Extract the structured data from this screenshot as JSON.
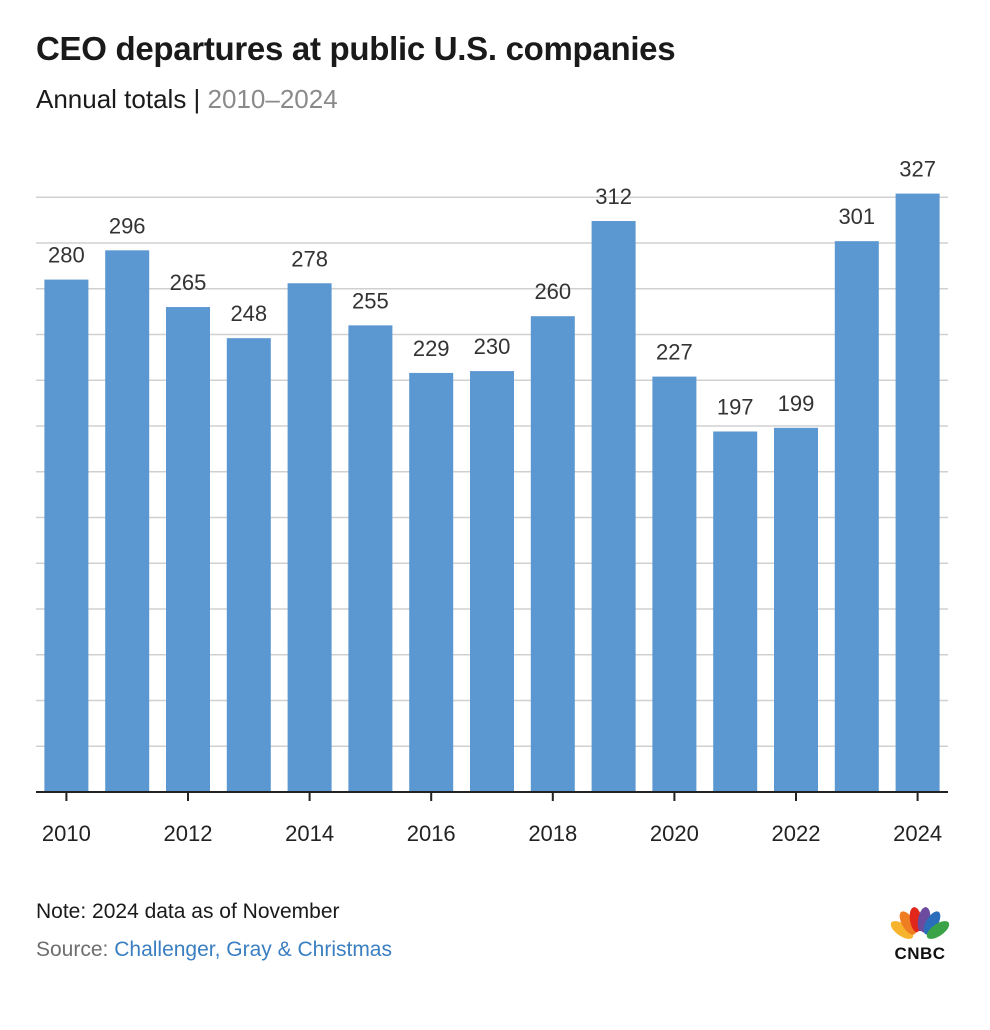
{
  "header": {
    "title": "CEO departures at public U.S. companies",
    "subtitle_main": "Annual totals | ",
    "subtitle_range": "2010–2024"
  },
  "chart_data": {
    "type": "bar",
    "categories": [
      "2010",
      "2011",
      "2012",
      "2013",
      "2014",
      "2015",
      "2016",
      "2017",
      "2018",
      "2019",
      "2020",
      "2021",
      "2022",
      "2023",
      "2024"
    ],
    "values": [
      280,
      296,
      265,
      248,
      278,
      255,
      229,
      230,
      260,
      312,
      227,
      197,
      199,
      301,
      327
    ],
    "x_tick_labels": [
      "2010",
      "2012",
      "2014",
      "2016",
      "2018",
      "2020",
      "2022",
      "2024"
    ],
    "ylim": [
      0,
      350
    ],
    "grid_step": 25,
    "grid": true,
    "bar_color": "#5b97d1",
    "grid_color": "#d0d0d0",
    "axis_color": "#222222"
  },
  "footer": {
    "note": "Note: 2024 data as of November",
    "source_prefix": "Source: ",
    "source_name": "Challenger, Gray & Christmas",
    "logo_text": "CNBC"
  },
  "colors": {
    "title": "#1a1a1a",
    "subtitle_range": "#8a8a8a",
    "source_link": "#3a7fc1"
  },
  "icons": {
    "logo": "cnbc-peacock-icon"
  }
}
